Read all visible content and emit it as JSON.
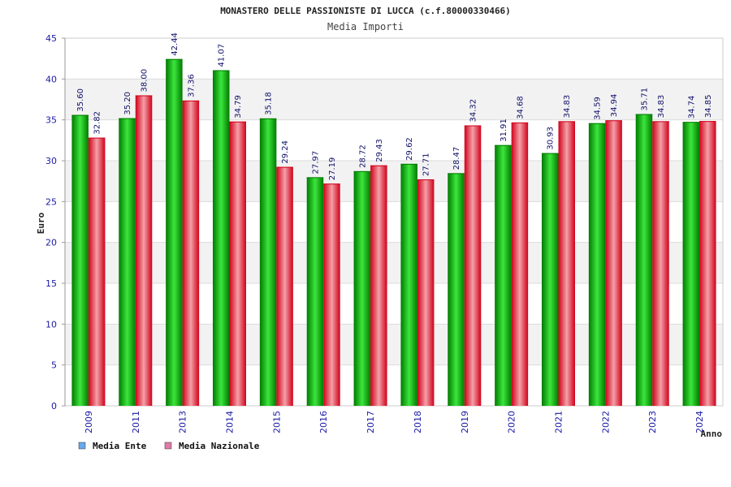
{
  "chart_data": {
    "type": "bar",
    "title": "MONASTERO DELLE PASSIONISTE DI LUCCA (c.f.80000330466)",
    "subtitle": "Media Importi",
    "xlabel": "Anno",
    "ylabel": "Euro",
    "ylim": [
      0,
      45
    ],
    "ytick_step": 5,
    "grid": true,
    "legend_position": "bottom-left",
    "categories": [
      "2009",
      "2011",
      "2013",
      "2014",
      "2015",
      "2016",
      "2017",
      "2018",
      "2019",
      "2020",
      "2021",
      "2022",
      "2023",
      "2024"
    ],
    "series": [
      {
        "name": "Media Ente",
        "legend_color": "#6aa8e8",
        "color_dark": "#007a00",
        "color_light": "#3ce63c",
        "values": [
          35.6,
          35.2,
          42.44,
          41.07,
          35.18,
          27.97,
          28.72,
          29.62,
          28.47,
          31.91,
          30.93,
          34.59,
          35.71,
          34.74
        ],
        "labels": [
          "35.60",
          "35.20",
          "42.44",
          "41.07",
          "35.18",
          "27.97",
          "28.72",
          "29.62",
          "28.47",
          "31.91",
          "30.93",
          "34.59",
          "35.71",
          "34.74"
        ]
      },
      {
        "name": "Media Nazionale",
        "legend_color": "#e07aa8",
        "color_dark": "#d00018",
        "color_light": "#f4a0a8",
        "values": [
          32.82,
          38.0,
          37.36,
          34.79,
          29.24,
          27.19,
          29.43,
          27.71,
          34.32,
          34.68,
          34.83,
          34.94,
          34.83,
          34.85
        ],
        "labels": [
          "32.82",
          "38.00",
          "37.36",
          "34.79",
          "29.24",
          "27.19",
          "29.43",
          "27.71",
          "34.32",
          "34.68",
          "34.83",
          "34.94",
          "34.83",
          "34.85"
        ]
      }
    ]
  }
}
